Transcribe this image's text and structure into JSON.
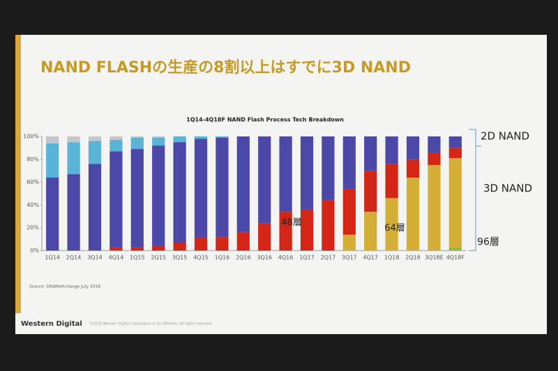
{
  "slide": {
    "title": "NAND FLASHの生産の8割以上はすでに3D NAND",
    "source": "Source: DRAMeXchange July 2018",
    "brand": "Western Digital",
    "copyright": "©2018 Western Digital Corporation or its affiliates. All rights reserved."
  },
  "chart_data": {
    "type": "bar",
    "stacked": true,
    "title": "1Q14-4Q18F NAND Flash Process Tech Breakdown",
    "categories": [
      "1Q14",
      "2Q14",
      "3Q14",
      "4Q14",
      "1Q15",
      "2Q15",
      "3Q15",
      "4Q15",
      "1Q16",
      "2Q16",
      "3Q16",
      "4Q16",
      "1Q17",
      "2Q17",
      "3Q17",
      "4Q17",
      "1Q18",
      "2Q18",
      "3Q18E",
      "4Q18F"
    ],
    "series": [
      {
        "name": "96層",
        "color": "#8bbd3a",
        "values": [
          0,
          0,
          0,
          0,
          0,
          0,
          0,
          0,
          0,
          0,
          0,
          0,
          0,
          0,
          0,
          0,
          0,
          0,
          0,
          3
        ]
      },
      {
        "name": "64層",
        "color": "#d4ae36",
        "values": [
          0,
          0,
          0,
          0,
          0,
          0,
          0,
          0,
          0,
          0,
          0,
          0,
          0,
          0,
          14,
          34,
          46,
          64,
          75,
          78
        ]
      },
      {
        "name": "48層",
        "color": "#d42617",
        "values": [
          0,
          0,
          0,
          3,
          3,
          4,
          7,
          11,
          12,
          16,
          24,
          34,
          36,
          44,
          40,
          36,
          30,
          16,
          11,
          9
        ]
      },
      {
        "name": "2D NAND",
        "color": "#4b48a8",
        "values": [
          64,
          67,
          76,
          84,
          86,
          88,
          88,
          87,
          87,
          84,
          76,
          66,
          64,
          56,
          46,
          30,
          24,
          20,
          14,
          10
        ]
      },
      {
        "color": "#5ab4d6",
        "values": [
          30,
          28,
          20,
          10,
          10,
          7,
          5,
          2,
          1,
          0,
          0,
          0,
          0,
          0,
          0,
          0,
          0,
          0,
          0,
          0
        ]
      },
      {
        "color": "#c3c6cb",
        "values": [
          6,
          5,
          4,
          3,
          1,
          1,
          0,
          0,
          0,
          0,
          0,
          0,
          0,
          0,
          0,
          0,
          0,
          0,
          0,
          0
        ]
      }
    ],
    "annotations": [
      "3D NAND"
    ],
    "ylim": [
      0,
      100
    ],
    "yticks": [
      {
        "value": 0,
        "label": "0%"
      },
      {
        "value": 20,
        "label": "20%"
      },
      {
        "value": 40,
        "label": "40%"
      },
      {
        "value": 60,
        "label": "60%"
      },
      {
        "value": 80,
        "label": "80%"
      },
      {
        "value": 100,
        "label": "100%"
      }
    ]
  }
}
